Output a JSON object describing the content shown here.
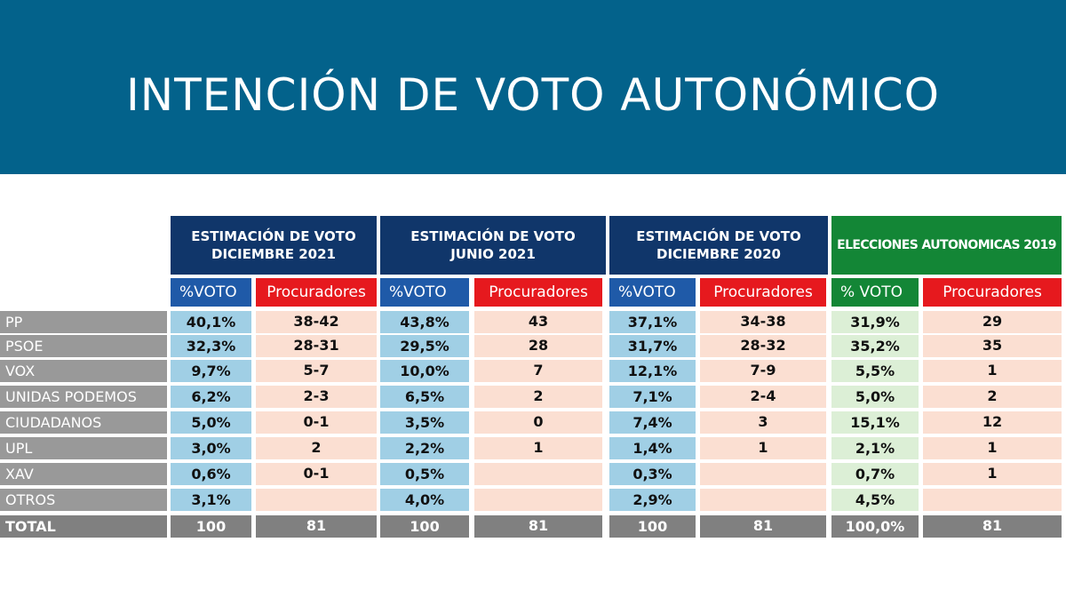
{
  "title": "INTENCIÓN DE VOTO AUTONÓMICO",
  "groups": [
    {
      "line1": "ESTIMACIÓN DE VOTO",
      "line2": "DICIEMBRE 2021"
    },
    {
      "line1": "ESTIMACIÓN DE VOTO",
      "line2": "JUNIO 2021"
    },
    {
      "line1": "ESTIMACIÓN DE VOTO",
      "line2": "DICIEMBRE 2020"
    },
    {
      "line1": "ELECCIONES AUTONOMICAS 2019",
      "line2": ""
    }
  ],
  "subheaders": [
    "%VOTO",
    "Procuradores",
    "%VOTO",
    "Procuradores",
    "%VOTO",
    "Procuradores",
    "% VOTO",
    "Procuradores"
  ],
  "rows": [
    {
      "party": "PP",
      "cells": [
        "40,1%",
        "38-42",
        "43,8%",
        "43",
        "37,1%",
        "34-38",
        "31,9%",
        "29"
      ]
    },
    {
      "party": "PSOE",
      "cells": [
        "32,3%",
        "28-31",
        "29,5%",
        "28",
        "31,7%",
        "28-32",
        "35,2%",
        "35"
      ]
    },
    {
      "party": "VOX",
      "cells": [
        "9,7%",
        "5-7",
        "10,0%",
        "7",
        "12,1%",
        "7-9",
        "5,5%",
        "1"
      ]
    },
    {
      "party": "UNIDAS PODEMOS",
      "cells": [
        "6,2%",
        "2-3",
        "6,5%",
        "2",
        "7,1%",
        "2-4",
        "5,0%",
        "2"
      ]
    },
    {
      "party": "CIUDADANOS",
      "cells": [
        "5,0%",
        "0-1",
        "3,5%",
        "0",
        "7,4%",
        "3",
        "15,1%",
        "12"
      ]
    },
    {
      "party": "UPL",
      "cells": [
        "3,0%",
        "2",
        "2,2%",
        "1",
        "1,4%",
        "1",
        "2,1%",
        "1"
      ]
    },
    {
      "party": "XAV",
      "cells": [
        "0,6%",
        "0-1",
        "0,5%",
        "",
        "0,3%",
        "",
        "0,7%",
        "1"
      ]
    },
    {
      "party": "OTROS",
      "cells": [
        "3,1%",
        "",
        "4,0%",
        "",
        "2,9%",
        "",
        "4,5%",
        ""
      ]
    }
  ],
  "total": {
    "party": "TOTAL",
    "cells": [
      "100",
      "81",
      "100",
      "81",
      "100",
      "81",
      "100,0%",
      "81"
    ]
  },
  "colors": {
    "banner": "#03628b",
    "header_blue": "#10366a",
    "header_green": "#138636",
    "procuradores_red": "#e6191e",
    "voto_cell": "#a0cfe5",
    "proc_cell": "#fbdfd2",
    "voto_2019_cell": "#dcefd6",
    "label_gray": "#999999",
    "total_gray": "#808080"
  }
}
